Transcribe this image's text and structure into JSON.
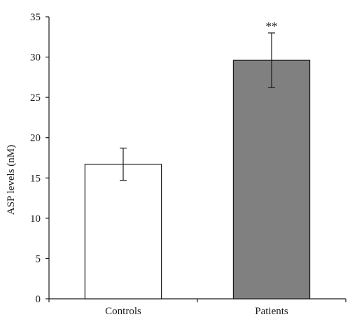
{
  "chart_data": {
    "type": "bar",
    "categories": [
      "Controls",
      "Patients"
    ],
    "values": [
      16.7,
      29.6
    ],
    "errors": [
      2.0,
      3.4
    ],
    "annotations": [
      "",
      "**"
    ],
    "bar_colors": [
      "#ffffff",
      "#808080"
    ],
    "ylabel": "ASP levels (nM)",
    "ylim": [
      0,
      35
    ],
    "yticks": [
      "0",
      "5",
      "10",
      "15",
      "20",
      "25",
      "30",
      "35"
    ],
    "grid": false
  }
}
